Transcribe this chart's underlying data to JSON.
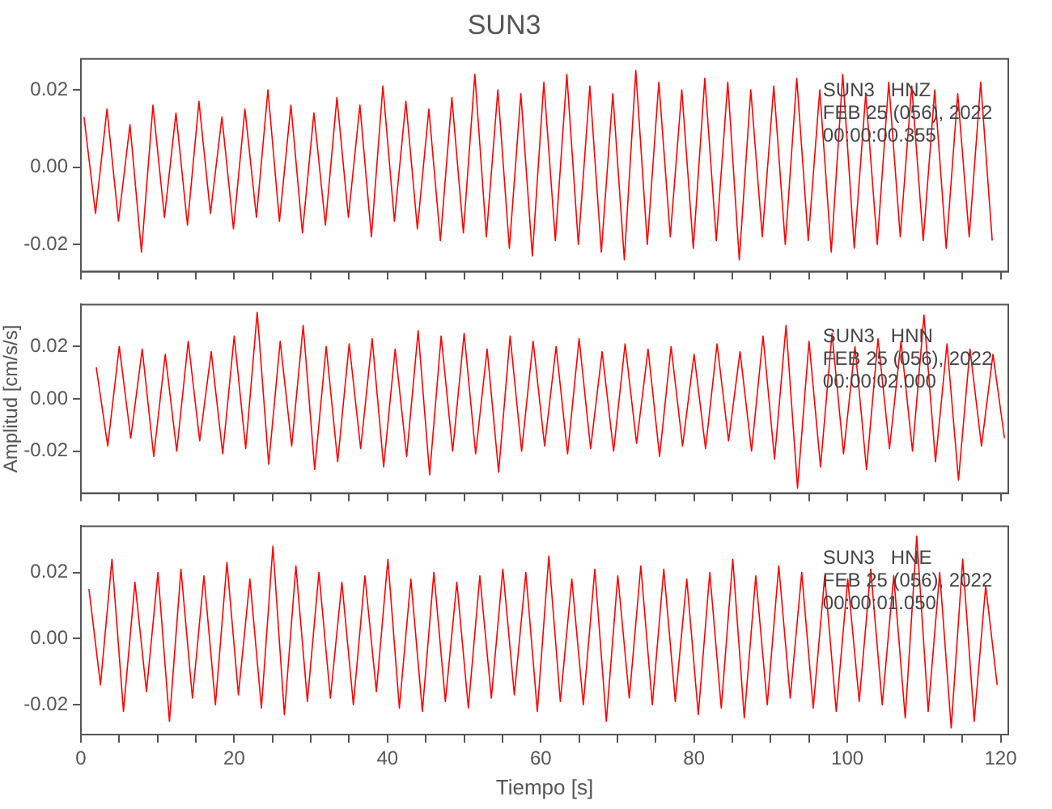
{
  "chart_data": [
    {
      "type": "line",
      "title": "SUN3",
      "tick_labels": "y",
      "xlim": [
        0,
        121
      ],
      "ylim": [
        -0.027,
        0.028
      ],
      "xticks": [
        0,
        {
          "value": 5,
          "label": null
        },
        {
          "value": 10,
          "label": null
        },
        {
          "value": 15,
          "label": null
        },
        20,
        {
          "value": 25,
          "label": null
        },
        {
          "value": 30,
          "label": null
        },
        {
          "value": 35,
          "label": null
        },
        40,
        {
          "value": 45,
          "label": null
        },
        {
          "value": 50,
          "label": null
        },
        {
          "value": 55,
          "label": null
        },
        60,
        {
          "value": 65,
          "label": null
        },
        {
          "value": 70,
          "label": null
        },
        {
          "value": 75,
          "label": null
        },
        80,
        {
          "value": 85,
          "label": null
        },
        {
          "value": 90,
          "label": null
        },
        {
          "value": 95,
          "label": null
        },
        100,
        {
          "value": 105,
          "label": null
        },
        {
          "value": 110,
          "label": null
        },
        {
          "value": 115,
          "label": null
        },
        120
      ],
      "yticks": [
        {
          "value": -0.02,
          "label": "-0.02"
        },
        {
          "value": 0,
          "label": "0.00"
        },
        {
          "value": 0.02,
          "label": "0.02"
        }
      ],
      "annotations": [
        "SUN3   HNZ",
        "FEB 25 (056), 2022",
        "00:00:00.355"
      ],
      "x": [
        0.4,
        1.9,
        3.4,
        4.9,
        6.4,
        7.9,
        9.4,
        10.9,
        12.4,
        13.9,
        15.4,
        16.9,
        18.4,
        19.9,
        21.4,
        22.9,
        24.4,
        25.9,
        27.4,
        28.9,
        30.4,
        31.9,
        33.4,
        34.9,
        36.4,
        37.9,
        39.4,
        40.9,
        42.4,
        43.9,
        45.4,
        46.9,
        48.4,
        49.9,
        51.4,
        52.9,
        54.4,
        55.9,
        57.4,
        58.9,
        60.4,
        61.9,
        63.4,
        64.9,
        66.4,
        67.9,
        69.4,
        70.9,
        72.4,
        73.9,
        75.4,
        76.9,
        78.4,
        79.9,
        81.4,
        82.9,
        84.4,
        85.9,
        87.4,
        88.9,
        90.4,
        91.9,
        93.4,
        94.9,
        96.4,
        97.9,
        99.4,
        100.9,
        102.4,
        103.9,
        105.4,
        106.9,
        108.4,
        109.9,
        111.4,
        112.9,
        114.4,
        115.9,
        117.4,
        118.9
      ],
      "series": [
        {
          "color": "#ff0000",
          "values": [
            0.013,
            -0.012,
            0.015,
            -0.014,
            0.011,
            -0.022,
            0.016,
            -0.013,
            0.014,
            -0.015,
            0.017,
            -0.012,
            0.013,
            -0.016,
            0.015,
            -0.013,
            0.02,
            -0.014,
            0.016,
            -0.017,
            0.014,
            -0.015,
            0.018,
            -0.013,
            0.016,
            -0.018,
            0.021,
            -0.014,
            0.017,
            -0.016,
            0.015,
            -0.019,
            0.018,
            -0.017,
            0.024,
            -0.018,
            0.02,
            -0.021,
            0.019,
            -0.023,
            0.022,
            -0.019,
            0.024,
            -0.02,
            0.021,
            -0.022,
            0.019,
            -0.024,
            0.025,
            -0.02,
            0.022,
            -0.018,
            0.02,
            -0.021,
            0.023,
            -0.019,
            0.022,
            -0.024,
            0.02,
            -0.018,
            0.021,
            -0.02,
            0.023,
            -0.019,
            0.02,
            -0.022,
            0.024,
            -0.021,
            0.019,
            -0.02,
            0.022,
            -0.018,
            0.021,
            -0.019,
            0.02,
            -0.021,
            0.019,
            -0.018,
            0.022,
            -0.019
          ]
        }
      ]
    },
    {
      "type": "line",
      "ylabel": "Amplitud [cm/s/s]",
      "tick_labels": "y",
      "xlim": [
        0,
        121
      ],
      "ylim": [
        -0.036,
        0.036
      ],
      "xticks": [
        0,
        {
          "value": 5,
          "label": null
        },
        {
          "value": 10,
          "label": null
        },
        {
          "value": 15,
          "label": null
        },
        20,
        {
          "value": 25,
          "label": null
        },
        {
          "value": 30,
          "label": null
        },
        {
          "value": 35,
          "label": null
        },
        40,
        {
          "value": 45,
          "label": null
        },
        {
          "value": 50,
          "label": null
        },
        {
          "value": 55,
          "label": null
        },
        60,
        {
          "value": 65,
          "label": null
        },
        {
          "value": 70,
          "label": null
        },
        {
          "value": 75,
          "label": null
        },
        80,
        {
          "value": 85,
          "label": null
        },
        {
          "value": 90,
          "label": null
        },
        {
          "value": 95,
          "label": null
        },
        100,
        {
          "value": 105,
          "label": null
        },
        {
          "value": 110,
          "label": null
        },
        {
          "value": 115,
          "label": null
        },
        120
      ],
      "yticks": [
        {
          "value": -0.02,
          "label": "-0.02"
        },
        {
          "value": 0,
          "label": "0.00"
        },
        {
          "value": 0.02,
          "label": "0.02"
        }
      ],
      "annotations": [
        "SUN3   HNN",
        "FEB 25 (056), 2022",
        "00:00:02.000"
      ],
      "x": [
        2,
        3.5,
        5,
        6.5,
        8,
        9.5,
        11,
        12.5,
        14,
        15.5,
        17,
        18.5,
        20,
        21.5,
        23,
        24.5,
        26,
        27.5,
        29,
        30.5,
        32,
        33.5,
        35,
        36.5,
        38,
        39.5,
        41,
        42.5,
        44,
        45.5,
        47,
        48.5,
        50,
        51.5,
        53,
        54.5,
        56,
        57.5,
        59,
        60.5,
        62,
        63.5,
        65,
        66.5,
        68,
        69.5,
        71,
        72.5,
        74,
        75.5,
        77,
        78.5,
        80,
        81.5,
        83,
        84.5,
        86,
        87.5,
        89,
        90.5,
        92,
        93.5,
        95,
        96.5,
        98,
        99.5,
        101,
        102.5,
        104,
        105.5,
        107,
        108.5,
        110,
        111.5,
        113,
        114.5,
        116,
        117.5,
        119,
        120.5
      ],
      "series": [
        {
          "color": "#ff0000",
          "values": [
            0.012,
            -0.018,
            0.02,
            -0.015,
            0.019,
            -0.022,
            0.017,
            -0.02,
            0.022,
            -0.016,
            0.018,
            -0.021,
            0.024,
            -0.019,
            0.033,
            -0.025,
            0.022,
            -0.018,
            0.028,
            -0.027,
            0.02,
            -0.024,
            0.021,
            -0.019,
            0.023,
            -0.026,
            0.019,
            -0.022,
            0.026,
            -0.029,
            0.024,
            -0.02,
            0.025,
            -0.021,
            0.019,
            -0.028,
            0.024,
            -0.02,
            0.022,
            -0.018,
            0.02,
            -0.021,
            0.023,
            -0.019,
            0.018,
            -0.02,
            0.021,
            -0.017,
            0.019,
            -0.022,
            0.02,
            -0.018,
            0.017,
            -0.019,
            0.021,
            -0.016,
            0.018,
            -0.02,
            0.024,
            -0.023,
            0.028,
            -0.034,
            0.022,
            -0.026,
            0.025,
            -0.021,
            0.02,
            -0.027,
            0.023,
            -0.019,
            0.022,
            -0.02,
            0.032,
            -0.024,
            0.021,
            -0.031,
            0.019,
            -0.018,
            0.017,
            -0.015
          ]
        }
      ]
    },
    {
      "type": "line",
      "xlabel": "Tiempo [s]",
      "xlim": [
        0,
        121
      ],
      "ylim": [
        -0.029,
        0.034
      ],
      "xticks": [
        0,
        {
          "value": 5,
          "label": null
        },
        {
          "value": 10,
          "label": null
        },
        {
          "value": 15,
          "label": null
        },
        20,
        {
          "value": 25,
          "label": null
        },
        {
          "value": 30,
          "label": null
        },
        {
          "value": 35,
          "label": null
        },
        40,
        {
          "value": 45,
          "label": null
        },
        {
          "value": 50,
          "label": null
        },
        {
          "value": 55,
          "label": null
        },
        60,
        {
          "value": 65,
          "label": null
        },
        {
          "value": 70,
          "label": null
        },
        {
          "value": 75,
          "label": null
        },
        80,
        {
          "value": 85,
          "label": null
        },
        {
          "value": 90,
          "label": null
        },
        {
          "value": 95,
          "label": null
        },
        100,
        {
          "value": 105,
          "label": null
        },
        {
          "value": 110,
          "label": null
        },
        {
          "value": 115,
          "label": null
        },
        120
      ],
      "yticks": [
        {
          "value": -0.02,
          "label": "-0.02"
        },
        {
          "value": 0,
          "label": "0.00"
        },
        {
          "value": 0.02,
          "label": "0.02"
        }
      ],
      "annotations": [
        "SUN3   HNE",
        "FEB 25 (056), 2022",
        "00:00:01.050"
      ],
      "x": [
        1.05,
        2.55,
        4.05,
        5.55,
        7.05,
        8.55,
        10.05,
        11.55,
        13.05,
        14.55,
        16.05,
        17.55,
        19.05,
        20.55,
        22.05,
        23.55,
        25.05,
        26.55,
        28.05,
        29.55,
        31.05,
        32.55,
        34.05,
        35.55,
        37.05,
        38.55,
        40.05,
        41.55,
        43.05,
        44.55,
        46.05,
        47.55,
        49.05,
        50.55,
        52.05,
        53.55,
        55.05,
        56.55,
        58.05,
        59.55,
        61.05,
        62.55,
        64.05,
        65.55,
        67.05,
        68.55,
        70.05,
        71.55,
        73.05,
        74.55,
        76.05,
        77.55,
        79.05,
        80.55,
        82.05,
        83.55,
        85.05,
        86.55,
        88.05,
        89.55,
        91.05,
        92.55,
        94.05,
        95.55,
        97.05,
        98.55,
        100.05,
        101.55,
        103.05,
        104.55,
        106.05,
        107.55,
        109.05,
        110.55,
        112.05,
        113.55,
        115.05,
        116.55,
        118.05,
        119.55
      ],
      "series": [
        {
          "color": "#ff0000",
          "values": [
            0.015,
            -0.014,
            0.024,
            -0.022,
            0.017,
            -0.016,
            0.02,
            -0.025,
            0.021,
            -0.018,
            0.019,
            -0.02,
            0.023,
            -0.017,
            0.018,
            -0.021,
            0.028,
            -0.023,
            0.022,
            -0.019,
            0.02,
            -0.018,
            0.017,
            -0.02,
            0.019,
            -0.016,
            0.024,
            -0.021,
            0.018,
            -0.022,
            0.02,
            -0.019,
            0.017,
            -0.021,
            0.019,
            -0.018,
            0.021,
            -0.017,
            0.02,
            -0.022,
            0.025,
            -0.019,
            0.018,
            -0.02,
            0.021,
            -0.025,
            0.019,
            -0.018,
            0.022,
            -0.02,
            0.021,
            -0.019,
            0.018,
            -0.023,
            0.02,
            -0.021,
            0.024,
            -0.024,
            0.019,
            -0.02,
            0.022,
            -0.018,
            0.02,
            -0.021,
            0.019,
            -0.022,
            0.018,
            -0.019,
            0.021,
            -0.02,
            0.019,
            -0.024,
            0.031,
            -0.022,
            0.02,
            -0.027,
            0.024,
            -0.025,
            0.016,
            -0.014
          ]
        }
      ]
    }
  ]
}
